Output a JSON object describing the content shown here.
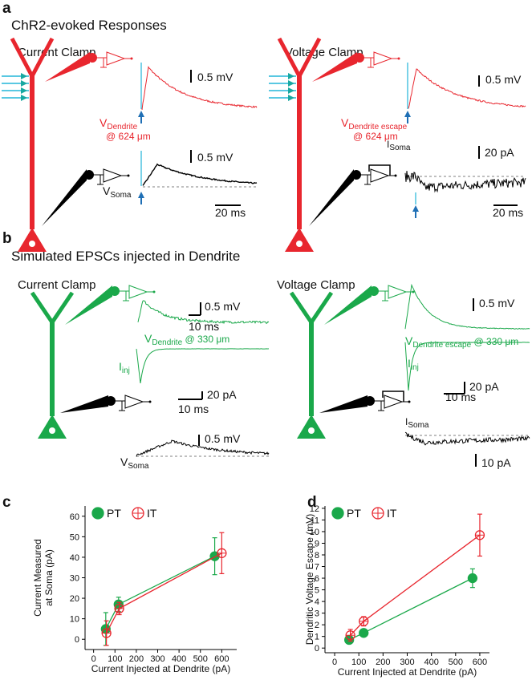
{
  "panel_a": {
    "label": "a",
    "title": "ChR2-evoked Responses",
    "current_clamp": {
      "title": "Current Clamp",
      "dendrite_scale": "0.5 mV",
      "soma_scale": "0.5 mV",
      "time_scale": "20 ms",
      "dendrite_label": {
        "symbol": "V",
        "subscript": "Dendrite",
        "note": "@ 624 μm"
      },
      "soma_label": {
        "symbol": "V",
        "subscript": "Soma"
      }
    },
    "voltage_clamp": {
      "title": "Voltage Clamp",
      "dendrite_scale": "0.5 mV",
      "current_scale": "20 pA",
      "time_scale": "20 ms",
      "dendrite_label": {
        "symbol": "V",
        "subscript": "Dendrite escape",
        "note": "@ 624 μm"
      },
      "soma_label": {
        "symbol": "I",
        "subscript": "Soma"
      }
    }
  },
  "panel_b": {
    "label": "b",
    "title": "Simulated EPSCs injected in Dendrite",
    "current_clamp": {
      "title": "Current Clamp",
      "dendrite_scale": "0.5 mV",
      "time_scale": "10 ms",
      "dendrite_label": {
        "symbol": "V",
        "subscript": "Dendrite",
        "note": " @ 330 μm"
      },
      "inj_label": {
        "symbol": "I",
        "subscript": "inj"
      },
      "current_scale": "20 pA",
      "time_scale_2": "10 ms",
      "soma_scale": "0.5 mV",
      "soma_label": {
        "symbol": "V",
        "subscript": "Soma"
      }
    },
    "voltage_clamp": {
      "title": "Voltage Clamp",
      "dendrite_scale": "0.5 mV",
      "dendrite_label": {
        "symbol": "V",
        "subscript": "Dendrite escape",
        "note": " @ 330 μm"
      },
      "inj_label": {
        "symbol": "I",
        "subscript": "inj"
      },
      "current_scale": "20 pA",
      "time_scale": "10 ms",
      "soma_label": {
        "symbol": "I",
        "subscript": "Soma"
      },
      "soma_scale": "10 pA"
    }
  },
  "chart_data": [
    {
      "type": "line",
      "panel_label": "c",
      "x_label": "Current Injected at Dendrite (pA)",
      "y_label": [
        "Current Measured",
        "at Soma (pA)"
      ],
      "xlim": [
        -40,
        670
      ],
      "xticks": [
        0,
        100,
        200,
        300,
        400,
        500,
        600
      ],
      "ylim": [
        -5,
        65
      ],
      "yticks": [
        0,
        10,
        20,
        30,
        40,
        50,
        60
      ],
      "series": [
        {
          "name": "PT",
          "color": "#1aa84a",
          "marker": "filled",
          "x": [
            57,
            117,
            567
          ],
          "values": [
            5,
            17,
            40.5
          ],
          "errors": [
            8,
            3.5,
            9
          ]
        },
        {
          "name": "IT",
          "color": "#e8262e",
          "marker": "open",
          "x": [
            60,
            120,
            600
          ],
          "values": [
            3,
            15,
            42
          ],
          "errors": [
            6,
            3,
            10
          ]
        }
      ]
    },
    {
      "type": "line",
      "panel_label": "d",
      "x_label": "Current Injected at Dendrite (pA)",
      "y_label": [
        "Dendritic Voltage Escape (mV)"
      ],
      "xlim": [
        -40,
        640
      ],
      "xticks": [
        0,
        100,
        200,
        300,
        400,
        500,
        600
      ],
      "ylim": [
        -0.4,
        12.2
      ],
      "yticks": [
        0,
        1,
        2,
        3,
        4,
        5,
        6,
        7,
        8,
        9,
        10,
        11,
        12
      ],
      "series": [
        {
          "name": "PT",
          "color": "#1aa84a",
          "marker": "filled",
          "x": [
            60,
            120,
            570
          ],
          "values": [
            0.7,
            1.3,
            6.0
          ],
          "errors": [
            0.3,
            0.3,
            0.8
          ]
        },
        {
          "name": "IT",
          "color": "#e8262e",
          "marker": "open",
          "x": [
            65,
            120,
            600
          ],
          "values": [
            1.1,
            2.3,
            9.7
          ],
          "errors": [
            0.5,
            0.4,
            1.8
          ]
        }
      ]
    }
  ]
}
